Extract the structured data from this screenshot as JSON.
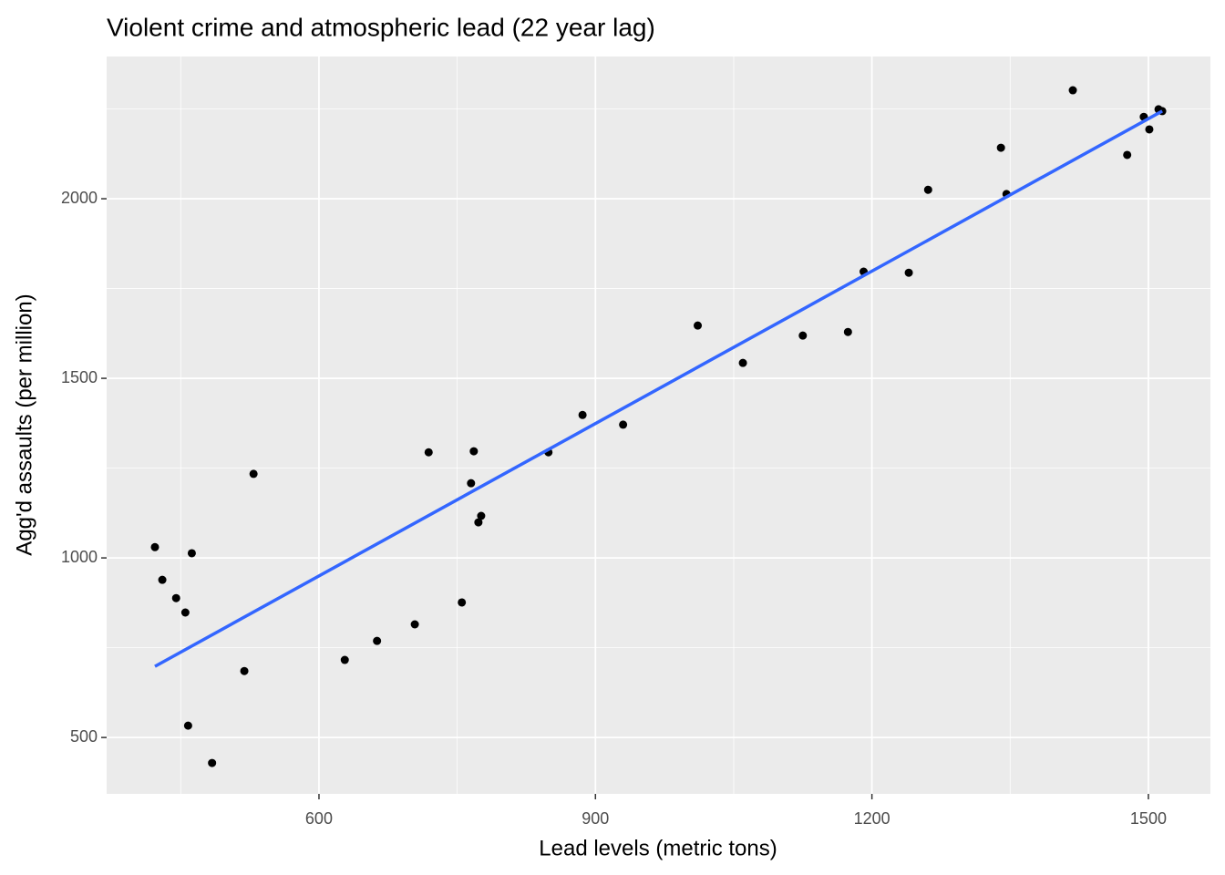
{
  "chart_data": {
    "type": "scatter",
    "title": "Violent crime and atmospheric lead (22 year lag)",
    "x_label": "Lead levels (metric tons)",
    "y_label": "Agg'd assaults (per million)",
    "x": [
      422,
      430,
      445,
      455,
      458,
      462,
      484,
      519,
      529,
      628,
      663,
      704,
      719,
      755,
      765,
      768,
      773,
      776,
      849,
      886,
      930,
      1011,
      1060,
      1125,
      1174,
      1191,
      1240,
      1261,
      1340,
      1346,
      1418,
      1477,
      1495,
      1501,
      1511,
      1515
    ],
    "y": [
      1030,
      939,
      888,
      848,
      533,
      1013,
      429,
      685,
      1234,
      716,
      769,
      815,
      1294,
      876,
      1208,
      1297,
      1099,
      1117,
      1294,
      1398,
      1371,
      1647,
      1543,
      1619,
      1629,
      1797,
      1794,
      2025,
      2142,
      2013,
      2302,
      2122,
      2228,
      2193,
      2249,
      2244
    ],
    "color": "#000000",
    "trend": {
      "x": [
        422,
        1515
      ],
      "y": [
        698,
        2244
      ],
      "color": "#3366ff"
    },
    "xlim": [
      369.6,
      1567.3
    ],
    "ylim": [
      343,
      2396
    ],
    "xticks": [
      600,
      900,
      1200,
      1500
    ],
    "yticks": [
      500,
      1000,
      1500,
      2000
    ],
    "grid": true
  }
}
